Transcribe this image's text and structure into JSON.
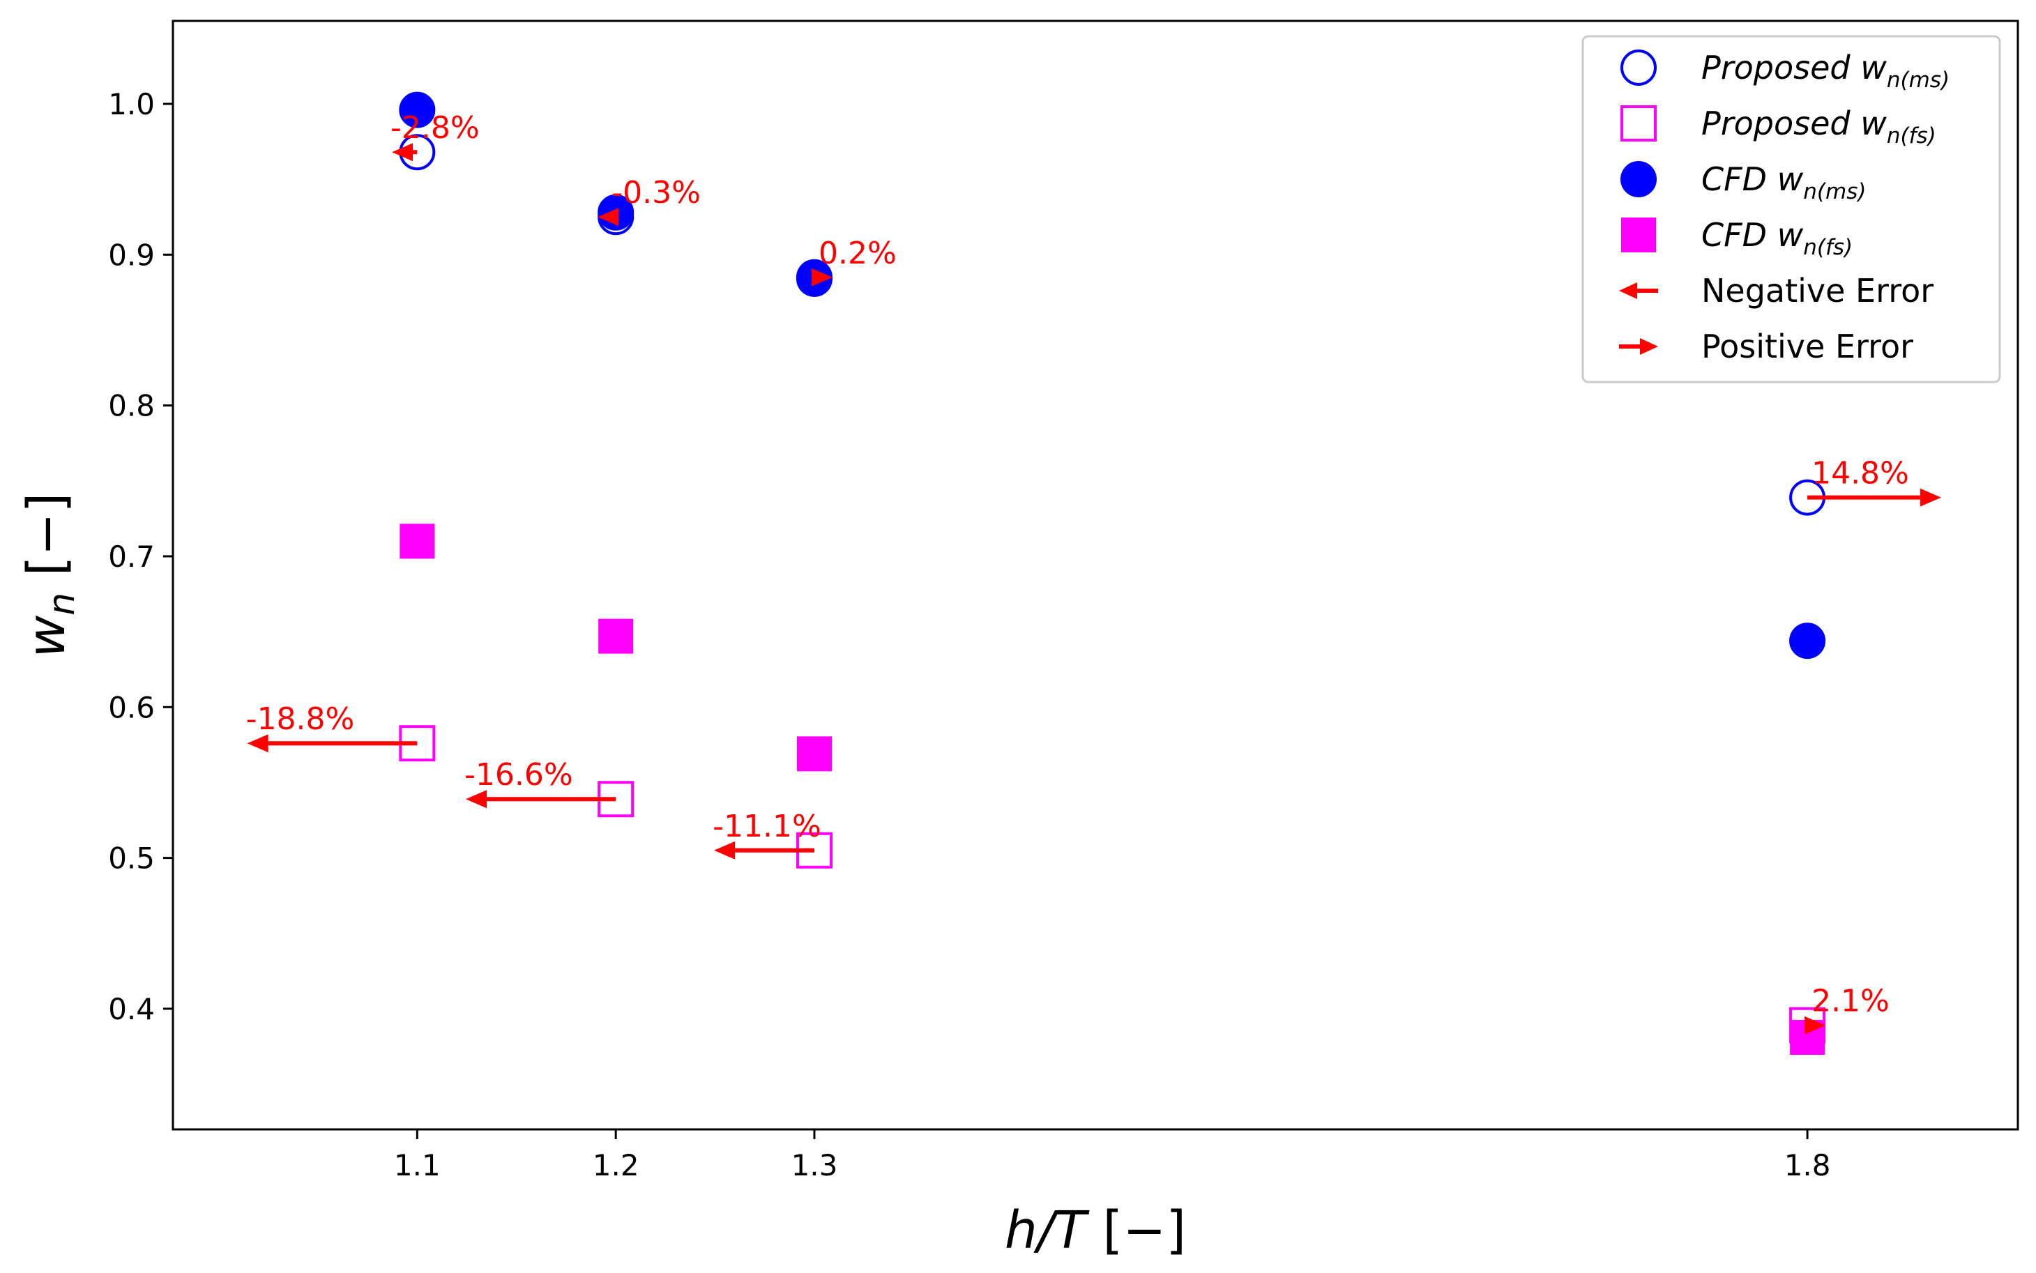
{
  "chart_data": {
    "type": "scatter",
    "xlabel": "h/T [−]",
    "xlabel_parts": {
      "var": "h/T",
      "unit": " [−]"
    },
    "ylabel": "w_n [−]",
    "ylabel_parts": {
      "var": "w",
      "sub": "n",
      "unit": " [−]"
    },
    "xlim": [
      0.977,
      1.906
    ],
    "ylim": [
      0.32,
      1.055
    ],
    "xticks": [
      {
        "value": 1.1,
        "label": "1.1"
      },
      {
        "value": 1.2,
        "label": "1.2"
      },
      {
        "value": 1.3,
        "label": "1.3"
      },
      {
        "value": 1.8,
        "label": "1.8"
      }
    ],
    "yticks": [
      {
        "value": 0.4,
        "label": "0.4"
      },
      {
        "value": 0.5,
        "label": "0.5"
      },
      {
        "value": 0.6,
        "label": "0.6"
      },
      {
        "value": 0.7,
        "label": "0.7"
      },
      {
        "value": 0.8,
        "label": "0.8"
      },
      {
        "value": 0.9,
        "label": "0.9"
      },
      {
        "value": 1.0,
        "label": "1.0"
      }
    ],
    "colors": {
      "ms": "#0000ff",
      "fs": "#ff00ff",
      "error": "#ff0000"
    },
    "series": [
      {
        "name": "Proposed w_n(ms)",
        "key": "proposed_ms",
        "marker": "circle-open",
        "color": "#0000ff",
        "points": [
          {
            "x": 1.1,
            "y": 0.968
          },
          {
            "x": 1.2,
            "y": 0.925
          },
          {
            "x": 1.3,
            "y": 0.885
          },
          {
            "x": 1.8,
            "y": 0.739
          }
        ]
      },
      {
        "name": "Proposed w_n(fs)",
        "key": "proposed_fs",
        "marker": "square-open",
        "color": "#ff00ff",
        "points": [
          {
            "x": 1.1,
            "y": 0.576
          },
          {
            "x": 1.2,
            "y": 0.539
          },
          {
            "x": 1.3,
            "y": 0.505
          },
          {
            "x": 1.8,
            "y": 0.389
          }
        ]
      },
      {
        "name": "CFD w_n(ms)",
        "key": "cfd_ms",
        "marker": "circle-filled",
        "color": "#0000ff",
        "points": [
          {
            "x": 1.1,
            "y": 0.996
          },
          {
            "x": 1.2,
            "y": 0.928
          },
          {
            "x": 1.3,
            "y": 0.884
          },
          {
            "x": 1.8,
            "y": 0.644
          }
        ]
      },
      {
        "name": "CFD w_n(fs)",
        "key": "cfd_fs",
        "marker": "square-filled",
        "color": "#ff00ff",
        "points": [
          {
            "x": 1.1,
            "y": 0.71
          },
          {
            "x": 1.2,
            "y": 0.647
          },
          {
            "x": 1.3,
            "y": 0.569
          },
          {
            "x": 1.8,
            "y": 0.381
          }
        ]
      }
    ],
    "error_arrows": [
      {
        "x": 1.1,
        "y": 0.968,
        "error_pct": -2.8,
        "label": "-2.8%"
      },
      {
        "x": 1.2,
        "y": 0.925,
        "error_pct": -0.3,
        "label": "-0.3%"
      },
      {
        "x": 1.3,
        "y": 0.885,
        "error_pct": 0.2,
        "label": "0.2%"
      },
      {
        "x": 1.8,
        "y": 0.739,
        "error_pct": 14.8,
        "label": "14.8%"
      },
      {
        "x": 1.1,
        "y": 0.576,
        "error_pct": -18.8,
        "label": "-18.8%"
      },
      {
        "x": 1.2,
        "y": 0.539,
        "error_pct": -16.6,
        "label": "-16.6%"
      },
      {
        "x": 1.3,
        "y": 0.505,
        "error_pct": -11.1,
        "label": "-11.1%"
      },
      {
        "x": 1.8,
        "y": 0.389,
        "error_pct": 2.1,
        "label": "2.1%"
      }
    ],
    "legend": {
      "position": "top-right",
      "entries": [
        {
          "key": "proposed_ms",
          "marker": "circle-open",
          "color": "#0000ff",
          "prefix": "Proposed ",
          "var": "w",
          "sub": "n(ms)",
          "italic": true
        },
        {
          "key": "proposed_fs",
          "marker": "square-open",
          "color": "#ff00ff",
          "prefix": "Proposed ",
          "var": "w",
          "sub": "n(fs)",
          "italic": true
        },
        {
          "key": "cfd_ms",
          "marker": "circle-filled",
          "color": "#0000ff",
          "prefix": "CFD ",
          "var": "w",
          "sub": "n(ms)",
          "italic": true
        },
        {
          "key": "cfd_fs",
          "marker": "square-filled",
          "color": "#ff00ff",
          "prefix": "CFD ",
          "var": "w",
          "sub": "n(fs)",
          "italic": true
        },
        {
          "key": "neg_error",
          "marker": "arrow-left",
          "color": "#ff0000",
          "prefix": "Negative Error",
          "var": "",
          "sub": "",
          "italic": false
        },
        {
          "key": "pos_error",
          "marker": "arrow-right",
          "color": "#ff0000",
          "prefix": "Positive Error",
          "var": "",
          "sub": "",
          "italic": false
        }
      ]
    }
  }
}
